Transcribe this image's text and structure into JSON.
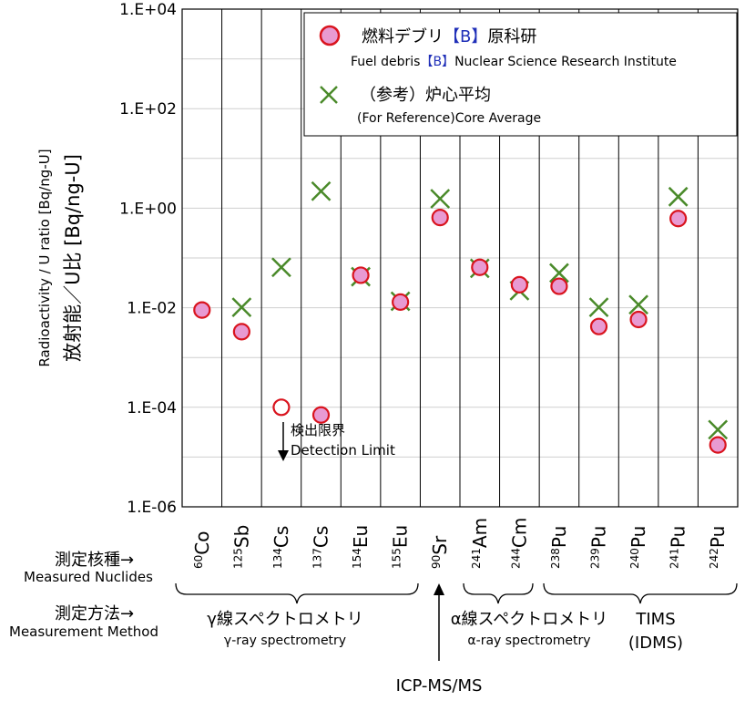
{
  "chart_data": {
    "type": "scatter",
    "scale": "log",
    "ylim": [
      1e-06,
      10000.0
    ],
    "y_ticks": [
      "1.E+04",
      "1.E+02",
      "1.E+00",
      "1.E-02",
      "1.E-04",
      "1.E-06"
    ],
    "ylabel_en": "Radioactivity / U ratio [Bq/ng-U]",
    "ylabel_ja": "放射能／U比 [Bq/ng-U]",
    "categories": [
      {
        "mass": "60",
        "el": "Co"
      },
      {
        "mass": "125",
        "el": "Sb"
      },
      {
        "mass": "134",
        "el": "Cs"
      },
      {
        "mass": "137",
        "el": "Cs"
      },
      {
        "mass": "154",
        "el": "Eu"
      },
      {
        "mass": "155",
        "el": "Eu"
      },
      {
        "mass": "90",
        "el": "Sr"
      },
      {
        "mass": "241",
        "el": "Am"
      },
      {
        "mass": "244",
        "el": "Cm"
      },
      {
        "mass": "238",
        "el": "Pu"
      },
      {
        "mass": "239",
        "el": "Pu"
      },
      {
        "mass": "240",
        "el": "Pu"
      },
      {
        "mass": "241",
        "el": "Pu"
      },
      {
        "mass": "242",
        "el": "Pu"
      }
    ],
    "series": [
      {
        "name": "燃料デブリ【B】原科研",
        "name_en": "Fuel debris【B】Nuclear Science Research Institute",
        "marker": "circle",
        "values": [
          0.009,
          0.0033,
          0.0001,
          7e-05,
          0.045,
          0.013,
          0.65,
          0.065,
          0.029,
          0.027,
          0.0042,
          0.0058,
          0.62,
          1.75e-05
        ],
        "hollow_index": [
          2
        ]
      },
      {
        "name": "（参考）炉心平均",
        "name_en": "(For Reference)Core Average",
        "marker": "x",
        "values": [
          null,
          0.0102,
          0.065,
          2.2,
          0.042,
          0.0135,
          1.55,
          0.062,
          0.022,
          0.05,
          0.0102,
          0.0115,
          1.7,
          3.55e-05
        ]
      }
    ],
    "annotations": {
      "detection_limit_ja": "検出限界",
      "detection_limit_en": "Detection Limit"
    }
  },
  "rows": {
    "nuclides_ja": "測定核種→",
    "nuclides_en": "Measured Nuclides",
    "method_ja": "測定方法→",
    "method_en": "Measurement Method"
  },
  "methods": {
    "gamma_ja": "γ線スペクトロメトリ",
    "gamma_en": "γ-ray spectrometry",
    "alpha_ja": "α線スペクトロメトリ",
    "alpha_en": "α-ray spectrometry",
    "tims_line1": "TIMS",
    "tims_line2": "(IDMS)",
    "icp": "ICP-MS/MS"
  },
  "legend": {
    "circle_ja": "燃料デブリ",
    "circle_b": "【B】",
    "circle_ja2": "原科研",
    "circle_en_pre": "Fuel debris",
    "circle_en_b": "【B】",
    "circle_en_post": "Nuclear Science Research Institute",
    "x_ja": "（参考）炉心平均",
    "x_en": "(For Reference)Core Average"
  },
  "colors": {
    "marker_fill": "#e89ad2",
    "marker_stroke": "#d9141e",
    "x_color": "#4a8a2a",
    "legend_b": "#1f2fb8",
    "grid": "#cfcfcf"
  }
}
